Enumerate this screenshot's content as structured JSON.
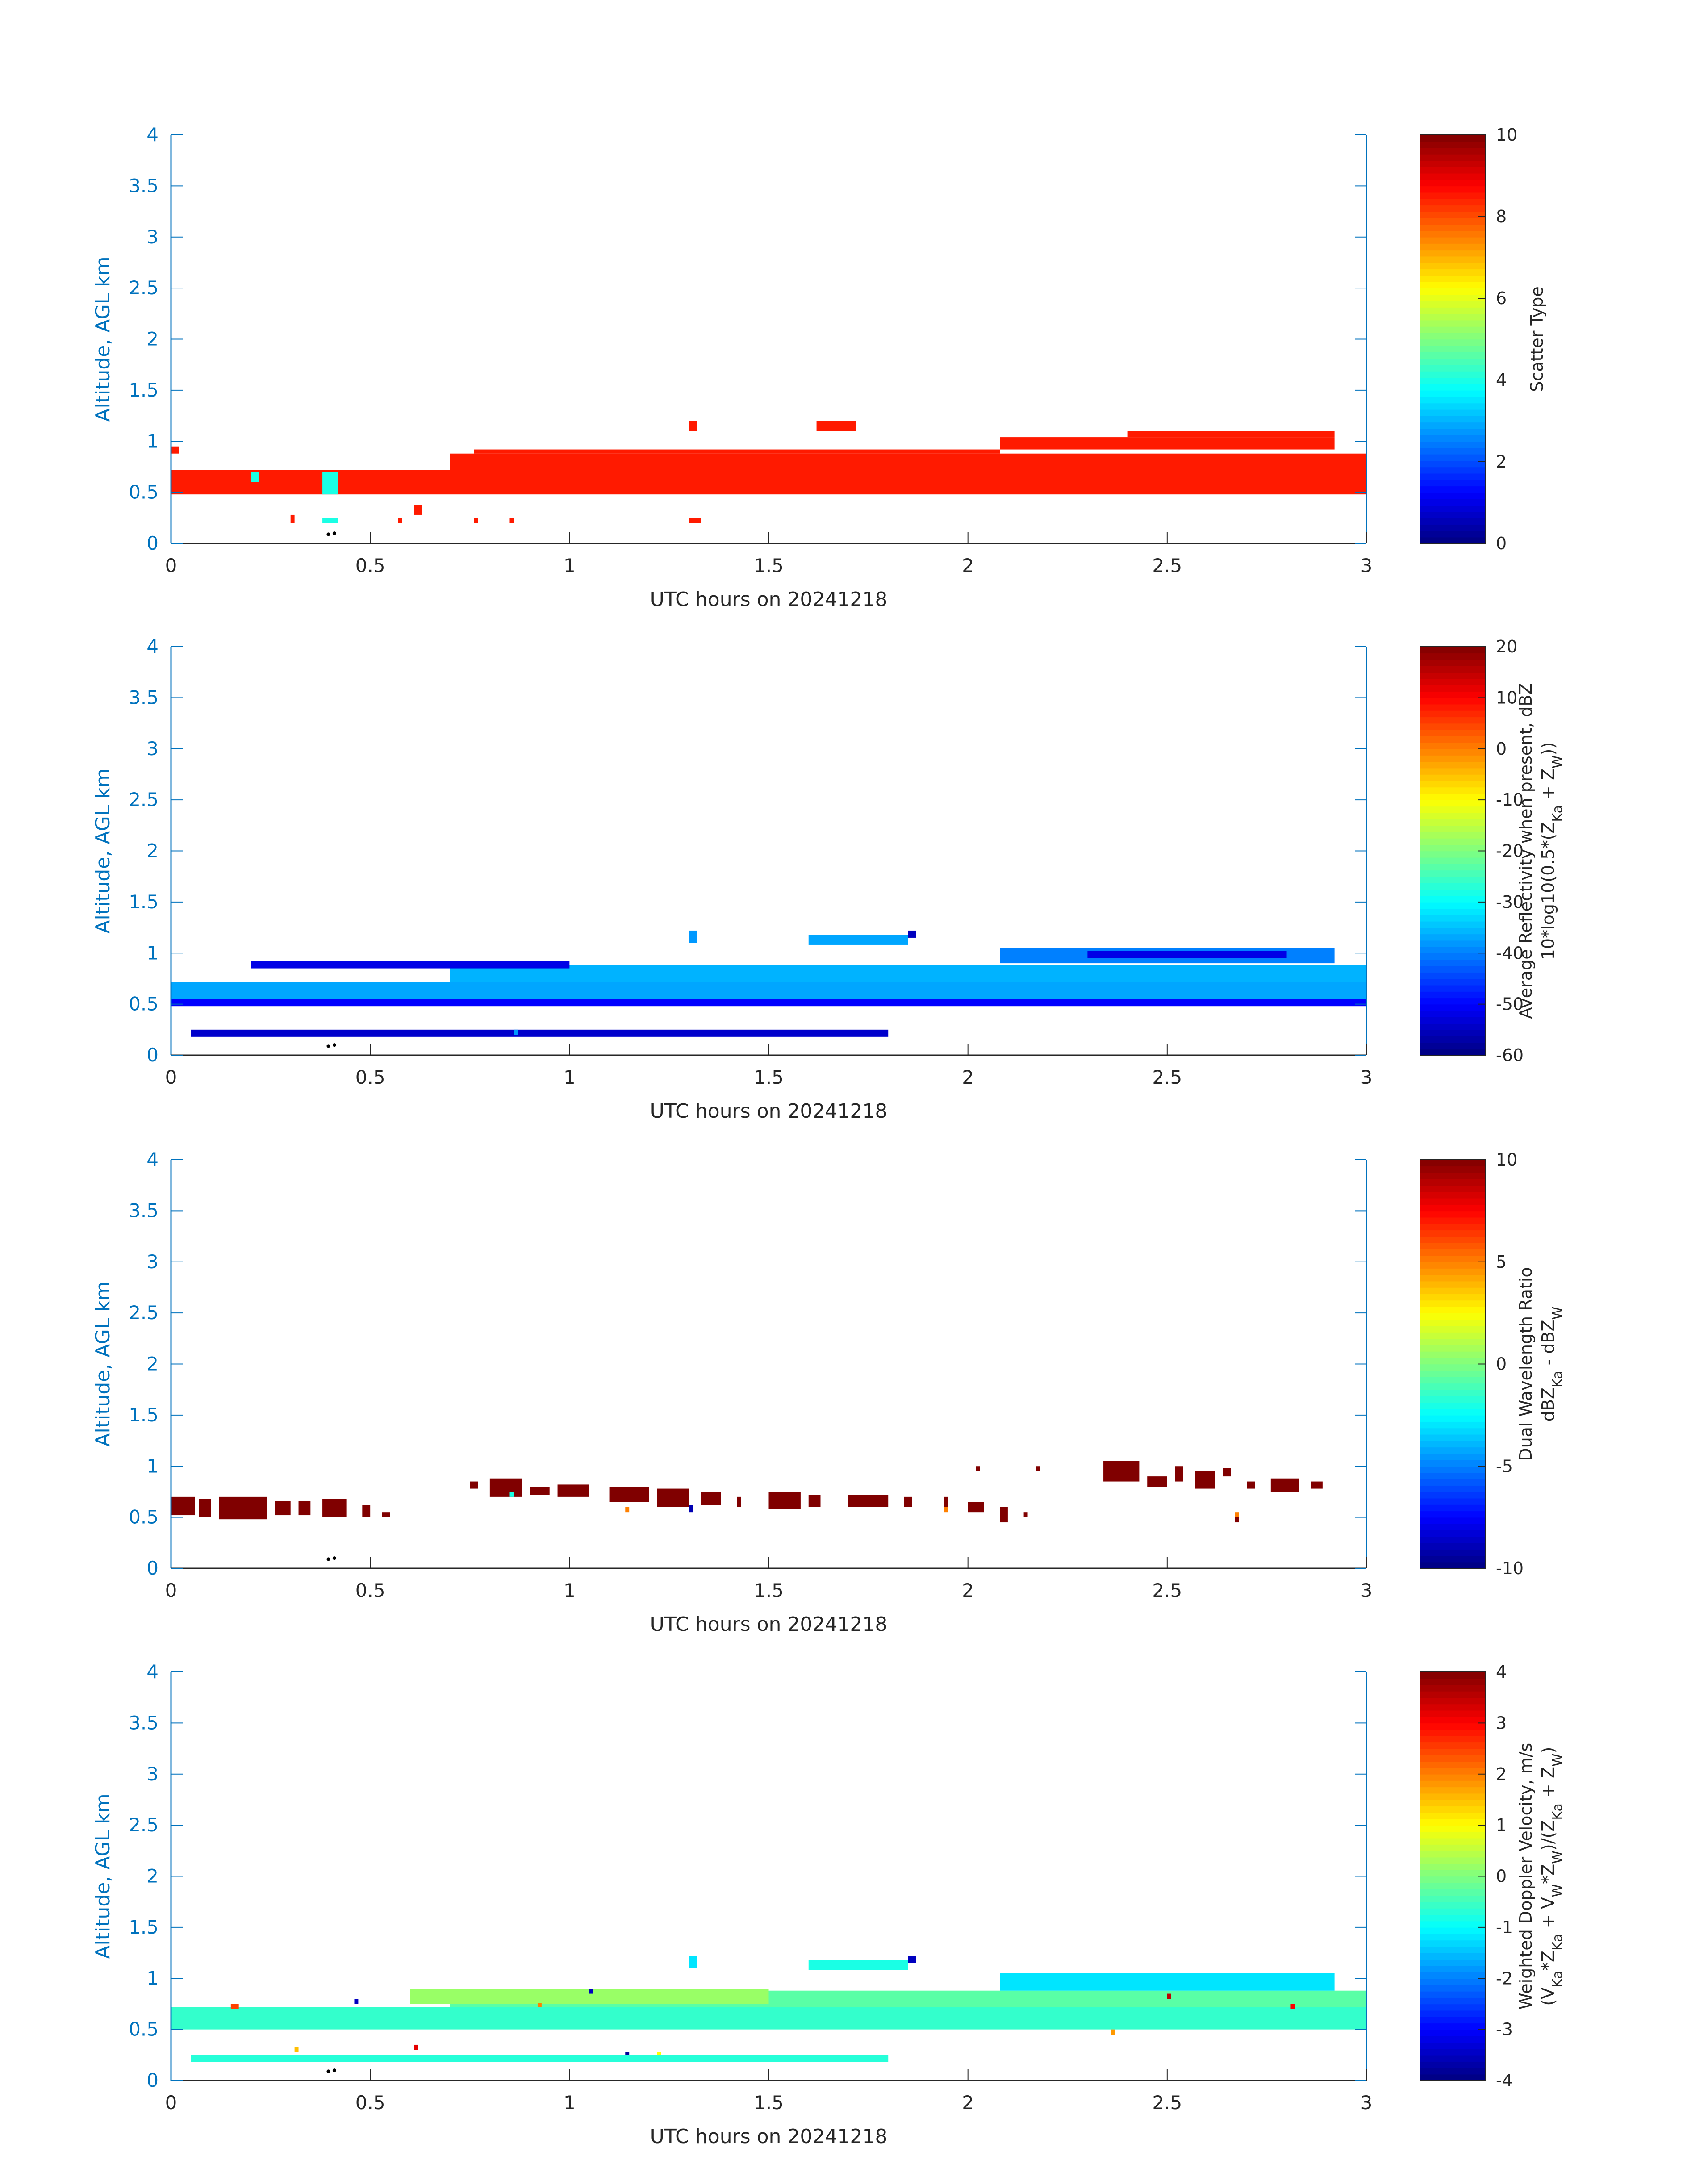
{
  "colors": {
    "axis_y": "#0072bd",
    "axis_x": "#262626",
    "colormap": "jet"
  },
  "chart_data": [
    {
      "type": "heatmap",
      "x": {
        "label": "UTC hours on 20241218",
        "lim": [
          0,
          3
        ],
        "ticks": [
          "0",
          "0.5",
          "1",
          "1.5",
          "2",
          "2.5",
          "3"
        ]
      },
      "y": {
        "label": "Altitude, AGL km",
        "lim": [
          0,
          4
        ],
        "ticks": [
          "0",
          "0.5",
          "1",
          "1.5",
          "2",
          "2.5",
          "3",
          "3.5",
          "4"
        ]
      },
      "colorbar": {
        "label_lines": [
          "Scatter Type"
        ],
        "lim": [
          0,
          10
        ],
        "ticks": [
          "0",
          "2",
          "4",
          "6",
          "8",
          "10"
        ]
      },
      "cells": [
        [
          0.0,
          3.0,
          0.48,
          0.72,
          8.5
        ],
        [
          0.7,
          3.0,
          0.72,
          0.88,
          8.5
        ],
        [
          0.76,
          2.08,
          0.88,
          0.92,
          8.5
        ],
        [
          1.62,
          1.72,
          1.1,
          1.2,
          8.5
        ],
        [
          2.08,
          2.92,
          0.92,
          1.04,
          8.5
        ],
        [
          2.4,
          2.92,
          1.04,
          1.1,
          8.5
        ],
        [
          1.3,
          1.32,
          1.1,
          1.2,
          8.5
        ],
        [
          0.2,
          0.22,
          0.6,
          0.7,
          4.0
        ],
        [
          0.38,
          0.42,
          0.48,
          0.7,
          4.0
        ],
        [
          0.38,
          0.42,
          0.2,
          0.25,
          4.0
        ],
        [
          0.3,
          0.31,
          0.2,
          0.28,
          8.5
        ],
        [
          0.57,
          0.58,
          0.2,
          0.25,
          8.5
        ],
        [
          0.61,
          0.63,
          0.28,
          0.38,
          8.5
        ],
        [
          0.76,
          0.77,
          0.2,
          0.25,
          8.5
        ],
        [
          0.85,
          0.86,
          0.2,
          0.25,
          8.5
        ],
        [
          1.3,
          1.33,
          0.2,
          0.25,
          8.5
        ],
        [
          0.0,
          0.02,
          0.88,
          0.95,
          8.5
        ]
      ]
    },
    {
      "type": "heatmap",
      "x": {
        "label": "UTC hours on 20241218",
        "lim": [
          0,
          3
        ],
        "ticks": [
          "0",
          "0.5",
          "1",
          "1.5",
          "2",
          "2.5",
          "3"
        ]
      },
      "y": {
        "label": "Altitude, AGL km",
        "lim": [
          0,
          4
        ],
        "ticks": [
          "0",
          "0.5",
          "1",
          "1.5",
          "2",
          "2.5",
          "3",
          "3.5",
          "4"
        ]
      },
      "colorbar": {
        "label_lines": [
          "Average Reflectivity when present, dBZ",
          "10*log10(0.5*(Z_Ka + Z_W))"
        ],
        "lim": [
          -60,
          20
        ],
        "ticks": [
          "-60",
          "-50",
          "-40",
          "-30",
          "-20",
          "-10",
          "0",
          "10",
          "20"
        ]
      },
      "cells": [
        [
          0.0,
          3.0,
          0.55,
          0.72,
          -37
        ],
        [
          0.7,
          3.0,
          0.72,
          0.88,
          -36
        ],
        [
          0.0,
          3.0,
          0.48,
          0.55,
          -50
        ],
        [
          0.2,
          1.0,
          0.85,
          0.92,
          -52
        ],
        [
          1.6,
          1.85,
          1.08,
          1.18,
          -37
        ],
        [
          2.08,
          2.92,
          0.9,
          1.05,
          -40
        ],
        [
          2.3,
          2.8,
          0.95,
          1.02,
          -52
        ],
        [
          0.05,
          1.8,
          0.18,
          0.25,
          -54
        ],
        [
          1.3,
          1.32,
          1.1,
          1.22,
          -38
        ],
        [
          1.85,
          1.87,
          1.15,
          1.22,
          -55
        ],
        [
          0.86,
          0.87,
          0.2,
          0.25,
          -38
        ]
      ]
    },
    {
      "type": "heatmap",
      "x": {
        "label": "UTC hours on 20241218",
        "lim": [
          0,
          3
        ],
        "ticks": [
          "0",
          "0.5",
          "1",
          "1.5",
          "2",
          "2.5",
          "3"
        ]
      },
      "y": {
        "label": "Altitude, AGL km",
        "lim": [
          0,
          4
        ],
        "ticks": [
          "0",
          "0.5",
          "1",
          "1.5",
          "2",
          "2.5",
          "3",
          "3.5",
          "4"
        ]
      },
      "colorbar": {
        "label_lines": [
          "Dual Wavelength Ratio",
          "dBZ_Ka - dBZ_W"
        ],
        "lim": [
          -10,
          10
        ],
        "ticks": [
          "-10",
          "-5",
          "0",
          "5",
          "10"
        ]
      },
      "cells": [
        [
          0.0,
          0.06,
          0.52,
          0.7,
          10
        ],
        [
          0.07,
          0.1,
          0.5,
          0.68,
          10
        ],
        [
          0.12,
          0.24,
          0.48,
          0.7,
          10
        ],
        [
          0.26,
          0.3,
          0.52,
          0.66,
          10
        ],
        [
          0.32,
          0.35,
          0.52,
          0.66,
          10
        ],
        [
          0.38,
          0.44,
          0.5,
          0.68,
          10
        ],
        [
          0.48,
          0.5,
          0.5,
          0.62,
          10
        ],
        [
          0.53,
          0.55,
          0.5,
          0.55,
          10
        ],
        [
          0.75,
          0.77,
          0.78,
          0.85,
          10
        ],
        [
          0.8,
          0.88,
          0.7,
          0.88,
          10
        ],
        [
          0.9,
          0.95,
          0.72,
          0.8,
          10
        ],
        [
          0.97,
          1.05,
          0.7,
          0.82,
          10
        ],
        [
          1.1,
          1.2,
          0.65,
          0.8,
          10
        ],
        [
          1.22,
          1.3,
          0.6,
          0.78,
          10
        ],
        [
          1.33,
          1.38,
          0.62,
          0.75,
          10
        ],
        [
          1.42,
          1.43,
          0.6,
          0.7,
          10
        ],
        [
          1.5,
          1.58,
          0.58,
          0.75,
          10
        ],
        [
          1.6,
          1.63,
          0.6,
          0.72,
          10
        ],
        [
          1.7,
          1.8,
          0.6,
          0.72,
          10
        ],
        [
          1.84,
          1.86,
          0.6,
          0.7,
          10
        ],
        [
          1.94,
          1.95,
          0.58,
          0.7,
          10
        ],
        [
          2.0,
          2.04,
          0.55,
          0.65,
          10
        ],
        [
          2.02,
          2.03,
          0.95,
          1.0,
          10
        ],
        [
          2.08,
          2.1,
          0.45,
          0.6,
          10
        ],
        [
          2.14,
          2.15,
          0.5,
          0.55,
          10
        ],
        [
          2.17,
          2.18,
          0.95,
          1.0,
          10
        ],
        [
          2.34,
          2.43,
          0.85,
          1.05,
          10
        ],
        [
          2.45,
          2.5,
          0.8,
          0.9,
          10
        ],
        [
          2.52,
          2.54,
          0.85,
          1.0,
          10
        ],
        [
          2.57,
          2.62,
          0.78,
          0.95,
          10
        ],
        [
          2.64,
          2.66,
          0.9,
          0.98,
          10
        ],
        [
          2.67,
          2.68,
          0.45,
          0.5,
          10
        ],
        [
          2.7,
          2.72,
          0.78,
          0.85,
          10
        ],
        [
          2.76,
          2.83,
          0.75,
          0.88,
          10
        ],
        [
          2.86,
          2.89,
          0.78,
          0.85,
          10
        ],
        [
          0.85,
          0.86,
          0.7,
          0.75,
          -2
        ],
        [
          1.14,
          1.15,
          0.55,
          0.6,
          5
        ],
        [
          1.3,
          1.31,
          0.55,
          0.62,
          -9
        ],
        [
          1.94,
          1.95,
          0.55,
          0.6,
          5
        ],
        [
          2.67,
          2.68,
          0.5,
          0.55,
          5
        ]
      ]
    },
    {
      "type": "heatmap",
      "x": {
        "label": "UTC hours on 20241218",
        "lim": [
          0,
          3
        ],
        "ticks": [
          "0",
          "0.5",
          "1",
          "1.5",
          "2",
          "2.5",
          "3"
        ]
      },
      "y": {
        "label": "Altitude, AGL km",
        "lim": [
          0,
          4
        ],
        "ticks": [
          "0",
          "0.5",
          "1",
          "1.5",
          "2",
          "2.5",
          "3",
          "3.5",
          "4"
        ]
      },
      "colorbar": {
        "label_lines": [
          "Weighted Doppler Velocity, m/s",
          "(V_Ka*Z_Ka + V_W*Z_W)/(Z_Ka + Z_W)"
        ],
        "lim": [
          -4,
          4
        ],
        "ticks": [
          "-4",
          "-3",
          "-2",
          "-1",
          "0",
          "1",
          "2",
          "3",
          "4"
        ]
      },
      "cells": [
        [
          0.0,
          3.0,
          0.5,
          0.72,
          -0.6
        ],
        [
          0.7,
          3.0,
          0.72,
          0.88,
          -0.3
        ],
        [
          0.6,
          1.5,
          0.75,
          0.9,
          0.2
        ],
        [
          2.08,
          2.92,
          0.88,
          1.05,
          -1.2
        ],
        [
          1.6,
          1.85,
          1.08,
          1.18,
          -0.8
        ],
        [
          0.05,
          1.8,
          0.18,
          0.25,
          -0.7
        ],
        [
          1.3,
          1.32,
          1.1,
          1.22,
          -1.2
        ],
        [
          1.85,
          1.87,
          1.15,
          1.22,
          -3.5
        ],
        [
          0.15,
          0.17,
          0.7,
          0.75,
          2.5
        ],
        [
          0.61,
          0.62,
          0.3,
          0.35,
          3.2
        ],
        [
          0.31,
          0.32,
          0.28,
          0.33,
          1.5
        ],
        [
          1.14,
          1.15,
          0.25,
          0.28,
          -3.8
        ],
        [
          1.22,
          1.23,
          0.25,
          0.28,
          1.0
        ],
        [
          2.5,
          2.51,
          0.8,
          0.85,
          3.5
        ],
        [
          2.81,
          2.82,
          0.7,
          0.75,
          3.0
        ],
        [
          0.46,
          0.47,
          0.75,
          0.8,
          -3.5
        ],
        [
          1.05,
          1.06,
          0.85,
          0.9,
          -3.5
        ],
        [
          2.36,
          2.37,
          0.45,
          0.5,
          1.8
        ],
        [
          0.92,
          0.93,
          0.72,
          0.76,
          2.0
        ]
      ]
    }
  ]
}
